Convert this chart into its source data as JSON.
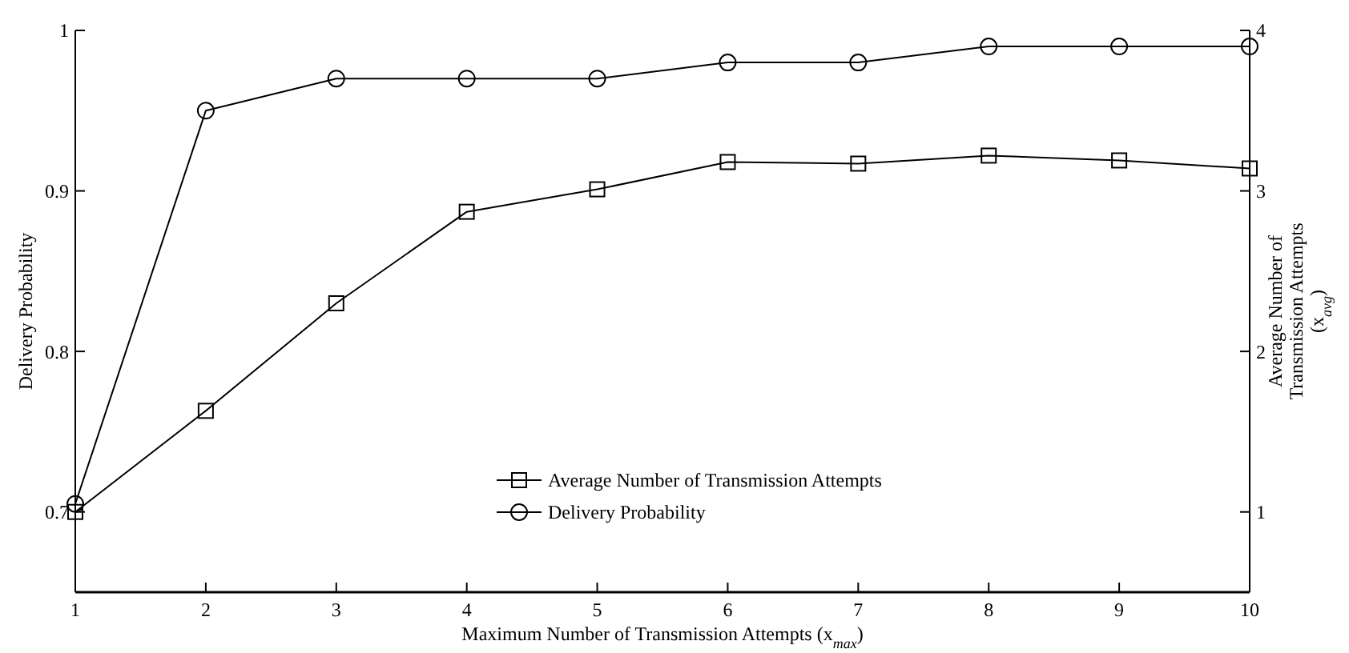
{
  "chart_data": {
    "type": "line",
    "xlabel": "Maximum Number of Transmission Attempts (x$_{max}$)",
    "ylabel": "Delivery Probability",
    "y2label": "Average Number of Transmission Attempts (x$_{avg}$)",
    "x": [
      1,
      2,
      3,
      4,
      5,
      6,
      7,
      8,
      9,
      10
    ],
    "series": [
      {
        "name": "Average Number of Transmission Attempts",
        "color": "#000000",
        "marker": "square",
        "axis": "y2",
        "values": [
          1.0,
          1.63,
          2.3,
          2.87,
          3.01,
          3.18,
          3.17,
          3.22,
          3.19,
          3.14
        ]
      },
      {
        "name": "Delivery Probability",
        "color": "#000000",
        "marker": "circle",
        "values": [
          0.705,
          0.95,
          0.97,
          0.97,
          0.97,
          0.98,
          0.98,
          0.99,
          0.99,
          0.99
        ]
      }
    ],
    "xlim": [
      1,
      10
    ],
    "xticks": [
      1,
      2,
      3,
      4,
      5,
      6,
      7,
      8,
      9,
      10
    ],
    "ylim": [
      0.65,
      1
    ],
    "yticks": [
      0.7,
      0.8,
      0.9,
      1
    ],
    "y2lim": [
      0.5,
      4
    ],
    "y2ticks": [
      1,
      2,
      3,
      4
    ],
    "legend": "bottom",
    "grid": false,
    "line_style": "solid"
  }
}
